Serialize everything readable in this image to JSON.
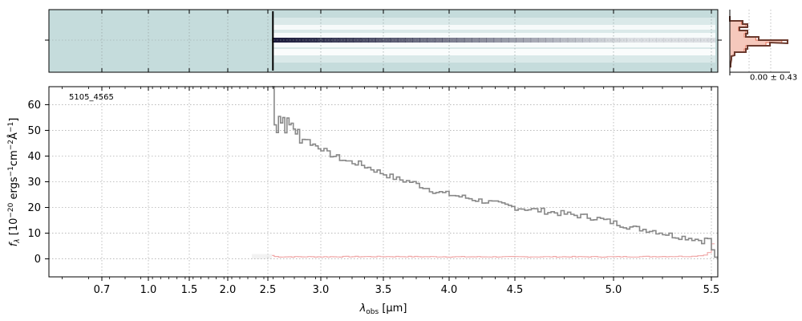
{
  "chart_data": [
    {
      "type": "heatmap",
      "panel": "2d-spectrum",
      "colormap": [
        "#c5dcdc",
        "#ffffff",
        "#1c1c3c"
      ],
      "x_range_um": [
        0.5,
        5.52
      ],
      "coverage_start_um": 2.54,
      "grid": true
    },
    {
      "type": "line",
      "panel": "profile",
      "annotation": "0.00 ± 0.43",
      "colors": {
        "fill": "#f5c8bc",
        "line": "#6b3a2e",
        "model": "#e8735a"
      }
    },
    {
      "type": "line",
      "panel": "1d-spectrum",
      "label": "5105_4565",
      "xlabel_main": "λ",
      "xlabel_sub": "obs",
      "xlabel_unit": " [μm]",
      "ylabel": "f_λ [10^-20 ergs^-1cm^-2Å^-1]",
      "ylabel_parts": {
        "f": "f",
        "sub": "λ",
        "open": " [10",
        "e1": "−20",
        "mid1": " ergs",
        "e2": "−1",
        "mid2": "cm",
        "e3": "−2",
        "mid3": "Å",
        "e4": "−1",
        "close": "]"
      },
      "x_ticks": [
        0.7,
        1.0,
        1.5,
        2.0,
        2.5,
        3.0,
        3.5,
        4.0,
        4.5,
        5.0,
        5.5
      ],
      "x_tick_labels": [
        "0.7",
        "1.0",
        "1.5",
        "2.0",
        "2.5",
        "3.0",
        "3.5",
        "4.0",
        "4.5",
        "5.0",
        "5.5"
      ],
      "y_ticks": [
        0,
        10,
        20,
        30,
        40,
        50,
        60
      ],
      "y_tick_labels": [
        "0",
        "10",
        "20",
        "30",
        "40",
        "50",
        "60"
      ],
      "ylim": [
        -7,
        67
      ],
      "grid": true,
      "colors": {
        "flux": "#888888",
        "error": "#f0a8a8"
      },
      "series": [
        {
          "role": "flux",
          "x": [
            2.54,
            2.56,
            2.58,
            2.6,
            2.62,
            2.64,
            2.66,
            2.68,
            2.7,
            2.72,
            2.74,
            2.76,
            2.78,
            2.8,
            2.85,
            2.9,
            2.95,
            3.0,
            3.05,
            3.1,
            3.15,
            3.2,
            3.3,
            3.4,
            3.5,
            3.6,
            3.7,
            3.8,
            3.9,
            4.0,
            4.1,
            4.2,
            4.3,
            4.4,
            4.5,
            4.6,
            4.7,
            4.8,
            4.9,
            5.0,
            5.1,
            5.2,
            5.3,
            5.4,
            5.45,
            5.48,
            5.5,
            5.52
          ],
          "y": [
            67,
            52,
            50,
            56,
            53,
            55,
            50,
            54,
            52,
            53,
            51,
            48,
            50,
            46,
            47,
            45,
            44,
            43,
            41,
            40,
            39,
            38,
            37,
            35,
            33,
            31,
            30,
            28,
            26,
            25,
            24,
            23,
            22,
            21,
            20,
            19,
            18,
            17,
            16,
            14,
            12,
            11,
            9,
            8,
            7,
            8,
            3,
            -1
          ]
        },
        {
          "role": "error",
          "x": [
            2.54,
            2.56,
            2.6,
            3.0,
            3.5,
            4.0,
            4.5,
            5.0,
            5.4,
            5.46,
            5.48,
            5.5,
            5.51
          ],
          "y": [
            1.3,
            0.9,
            0.8,
            0.8,
            0.9,
            0.8,
            0.8,
            0.8,
            1.0,
            1.5,
            2.5,
            6,
            20
          ]
        }
      ]
    }
  ]
}
